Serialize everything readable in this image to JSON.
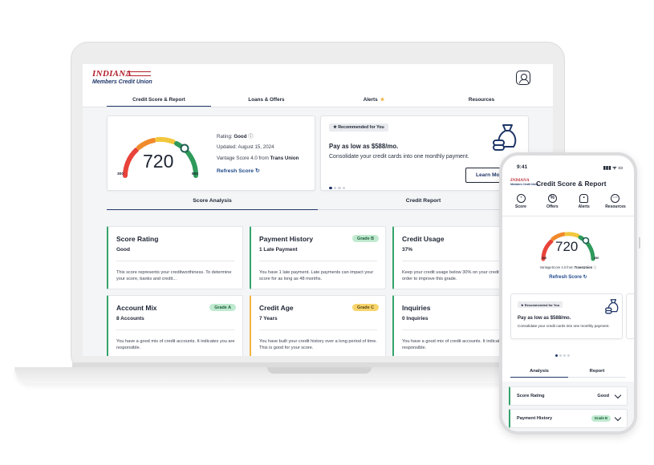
{
  "brand": {
    "line1": "INDIANA",
    "line2": "Members Credit Union"
  },
  "laptop": {
    "tabs": [
      {
        "label": "Credit Score & Report",
        "active": true
      },
      {
        "label": "Loans & Offers"
      },
      {
        "label": "Alerts"
      },
      {
        "label": "Resources"
      }
    ],
    "score": {
      "value": "720",
      "min": "300",
      "max": "850",
      "rating_label": "Rating:",
      "rating_value": "Good",
      "updated": "Updated: August 15, 2024",
      "vantage_prefix": "Vantage Score 4.0 from",
      "bureau": "Trans Union",
      "refresh": "Refresh Score"
    },
    "recommendation": {
      "badge": "Recommended for You",
      "title": "Pay as low as $588/mo.",
      "description": "Consolidate your credit cards into one monthly payment.",
      "button": "Learn More"
    },
    "subtabs": [
      {
        "label": "Score Analysis",
        "active": true
      },
      {
        "label": "Credit Report"
      }
    ],
    "analysis": [
      {
        "title": "Score Rating",
        "value": "Good",
        "grade": "",
        "desc": "This score represents your creditworthiness. To determine your score, banks and credit...",
        "color": "#35a36b"
      },
      {
        "title": "Payment History",
        "value": "1 Late Payment",
        "grade": "Grade B",
        "desc": "You have 1 late payment. Late payments can impact your score for as long as 48 months.",
        "color": "#35a36b"
      },
      {
        "title": "Credit Usage",
        "value": "37%",
        "grade": "",
        "desc": "Keep your credit usage below 30% on your credit cards in order to improve this grade.",
        "color": "#35a36b"
      },
      {
        "title": "Account Mix",
        "value": "8 Accounts",
        "grade": "Grade A",
        "desc": "You have a good mix of credit accounts. It indicates you are responsible.",
        "color": "#35a36b"
      },
      {
        "title": "Credit Age",
        "value": "7 Years",
        "grade": "Grade C",
        "desc": "You have built your credit history over a long period of time. This is good for your score.",
        "color": "#f2b33d"
      },
      {
        "title": "Inquiries",
        "value": "0 Inquiries",
        "grade": "",
        "desc": "You have a good mix of credit accounts. It indicates you are responsible.",
        "color": "#35a36b"
      }
    ]
  },
  "phone": {
    "time": "9:41",
    "status": "▮▮▮ ᯤ ▭",
    "title": "Credit Score & Report",
    "nav": [
      "Score",
      "Offers",
      "Alerts",
      "Resources"
    ],
    "score": "720",
    "min": "300",
    "max": "850",
    "vantage_prefix": "VantageScore 4.0 from",
    "bureau": "TransUnion",
    "refresh": "Refresh Score",
    "rec_badge": "Recommended for You",
    "rec_title": "Pay as low as $588/mo.",
    "rec_desc": "Consolidate your credit cards into one monthly payment.",
    "tabs": [
      {
        "label": "Analysis",
        "active": true
      },
      {
        "label": "Report"
      }
    ],
    "rows": [
      {
        "name": "Score Rating",
        "value": "Good"
      },
      {
        "name": "Payment History",
        "grade": "Grade B"
      }
    ]
  },
  "colors": {
    "navy": "#1f3668",
    "red": "#b2202c",
    "green": "#35a36b",
    "yellow": "#f2b33d",
    "orange": "#f08a2c"
  }
}
